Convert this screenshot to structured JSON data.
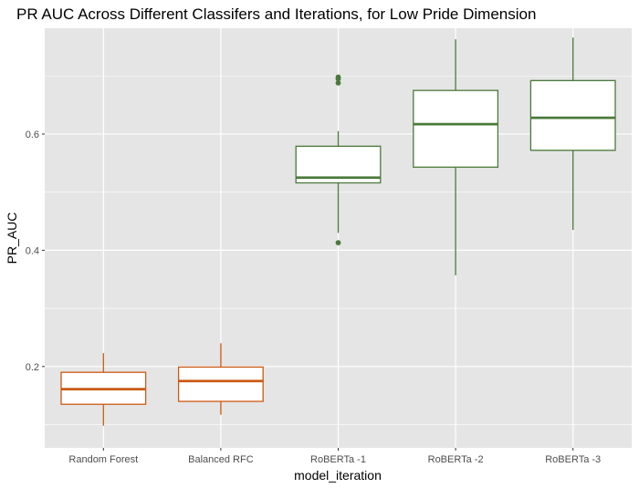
{
  "chart_data": {
    "type": "boxplot",
    "title": "PR AUC Across Different Classifers and Iterations, for Low Pride Dimension",
    "xlabel": "model_iteration",
    "ylabel": "PR_AUC",
    "ylim": [
      0.06,
      0.782
    ],
    "yticks": [
      0.2,
      0.4,
      0.6
    ],
    "yticklabels": [
      "0.2",
      "0.4",
      "0.6"
    ],
    "grid": true,
    "legend": "none",
    "categories": [
      "Random Forest",
      "Balanced RFC",
      "RoBERTa -1",
      "RoBERTa -2",
      "RoBERTa -3"
    ],
    "boxes": [
      {
        "category": "Random Forest",
        "min": 0.098,
        "q1": 0.135,
        "median": 0.161,
        "q3": 0.19,
        "max": 0.223,
        "outliers": [],
        "color": "#cc5a14"
      },
      {
        "category": "Balanced RFC",
        "min": 0.117,
        "q1": 0.14,
        "median": 0.175,
        "q3": 0.199,
        "max": 0.24,
        "outliers": [],
        "color": "#cc5a14"
      },
      {
        "category": "RoBERTa -1",
        "min": 0.43,
        "q1": 0.516,
        "median": 0.525,
        "q3": 0.579,
        "max": 0.605,
        "outliers": [
          0.413,
          0.688,
          0.695,
          0.698
        ],
        "color": "#4a7a3a"
      },
      {
        "category": "RoBERTa -2",
        "min": 0.357,
        "q1": 0.543,
        "median": 0.617,
        "q3": 0.675,
        "max": 0.763,
        "outliers": [],
        "color": "#4a7a3a"
      },
      {
        "category": "RoBERTa -3",
        "min": 0.435,
        "q1": 0.572,
        "median": 0.628,
        "q3": 0.692,
        "max": 0.766,
        "outliers": [],
        "color": "#4a7a3a"
      }
    ],
    "panel_color": "#e5e5e5",
    "grid_color": "#ffffff"
  }
}
